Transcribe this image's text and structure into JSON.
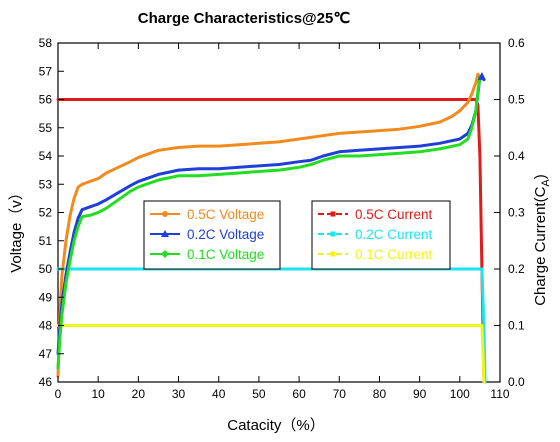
{
  "chart_data": {
    "type": "line",
    "title": "Charge Characteristics@25℃",
    "xlabel": "Catacity（%）",
    "ylabel": "Voltage（v）",
    "ylabel_right": "Charge Current(C",
    "ylabel_right_sub": "A",
    "ylabel_right_close": ")",
    "xlim": [
      0,
      110
    ],
    "ylim": [
      46,
      58
    ],
    "ylim_right": [
      0.0,
      0.6
    ],
    "x_ticks": [
      "0",
      "10",
      "20",
      "30",
      "40",
      "50",
      "60",
      "70",
      "80",
      "90",
      "100",
      "110"
    ],
    "y_ticks": [
      "46",
      "47",
      "48",
      "49",
      "50",
      "51",
      "52",
      "53",
      "54",
      "55",
      "56",
      "57",
      "58"
    ],
    "y_right_ticks": [
      "0.0",
      "0.1",
      "0.2",
      "0.3",
      "0.4",
      "0.5",
      "0.6"
    ],
    "grid": false,
    "voltage_series": [
      {
        "name": "0.5C Voltage",
        "color": "#f28a1e",
        "axis": "left",
        "x": [
          0,
          0.5,
          1,
          2,
          3,
          4,
          5,
          6,
          8,
          10,
          12,
          15,
          18,
          20,
          25,
          30,
          35,
          40,
          45,
          50,
          55,
          60,
          65,
          70,
          75,
          80,
          85,
          90,
          95,
          98,
          100,
          102,
          103,
          104,
          104.5,
          105,
          105.5
        ],
        "y": [
          46.2,
          48.6,
          49.8,
          51.0,
          51.9,
          52.5,
          52.9,
          53.0,
          53.1,
          53.2,
          53.4,
          53.6,
          53.8,
          53.95,
          54.2,
          54.3,
          54.35,
          54.35,
          54.4,
          54.45,
          54.5,
          54.6,
          54.7,
          54.8,
          54.85,
          54.9,
          54.95,
          55.05,
          55.2,
          55.4,
          55.6,
          55.9,
          56.2,
          56.6,
          56.9,
          56.8,
          56.8
        ]
      },
      {
        "name": "0.2C Voltage",
        "color": "#1f3fd8",
        "axis": "left",
        "x": [
          0,
          0.5,
          1,
          2,
          3,
          4,
          5,
          6,
          8,
          10,
          12,
          15,
          18,
          20,
          25,
          30,
          35,
          40,
          45,
          50,
          55,
          60,
          63,
          66,
          70,
          75,
          80,
          85,
          90,
          95,
          100,
          102,
          103,
          104,
          104.5,
          105,
          105.5,
          106
        ],
        "y": [
          47.0,
          48.0,
          48.8,
          49.8,
          50.6,
          51.3,
          51.8,
          52.1,
          52.2,
          52.3,
          52.45,
          52.7,
          52.95,
          53.1,
          53.35,
          53.5,
          53.55,
          53.55,
          53.6,
          53.65,
          53.7,
          53.8,
          53.85,
          54.0,
          54.15,
          54.2,
          54.25,
          54.3,
          54.35,
          54.45,
          54.6,
          54.8,
          55.1,
          55.6,
          56.2,
          56.8,
          56.8,
          56.7
        ]
      },
      {
        "name": "0.1C Voltage",
        "color": "#22dd22",
        "axis": "left",
        "x": [
          0,
          0.5,
          1,
          2,
          3,
          4,
          5,
          6,
          8,
          10,
          12,
          15,
          18,
          20,
          25,
          30,
          35,
          40,
          45,
          50,
          55,
          60,
          63,
          66,
          70,
          75,
          80,
          85,
          90,
          95,
          100,
          102,
          103,
          104,
          104.5,
          105,
          105.5
        ],
        "y": [
          46.5,
          47.6,
          48.4,
          49.5,
          50.3,
          51.0,
          51.5,
          51.85,
          51.9,
          52.0,
          52.15,
          52.45,
          52.75,
          52.9,
          53.15,
          53.3,
          53.3,
          53.35,
          53.4,
          53.45,
          53.5,
          53.6,
          53.7,
          53.85,
          54.0,
          54.0,
          54.05,
          54.1,
          54.15,
          54.25,
          54.4,
          54.6,
          55.0,
          55.6,
          56.3,
          56.8,
          56.8
        ]
      }
    ],
    "current_series": [
      {
        "name": "0.5C Current",
        "color": "#e11a1a",
        "axis": "right",
        "x": [
          0,
          104,
          104.5,
          105,
          105.5,
          106
        ],
        "y": [
          0.5,
          0.5,
          0.49,
          0.4,
          0.2,
          0.01
        ]
      },
      {
        "name": "0.2C Current",
        "color": "#19e6f0",
        "axis": "right",
        "x": [
          0,
          105.5,
          106,
          106.3
        ],
        "y": [
          0.2,
          0.2,
          0.1,
          0.0
        ]
      },
      {
        "name": "0.1C Current",
        "color": "#f2f21c",
        "axis": "right",
        "x": [
          0,
          105.5,
          105.8,
          106
        ],
        "y": [
          0.1,
          0.1,
          0.05,
          0.0
        ]
      }
    ]
  }
}
